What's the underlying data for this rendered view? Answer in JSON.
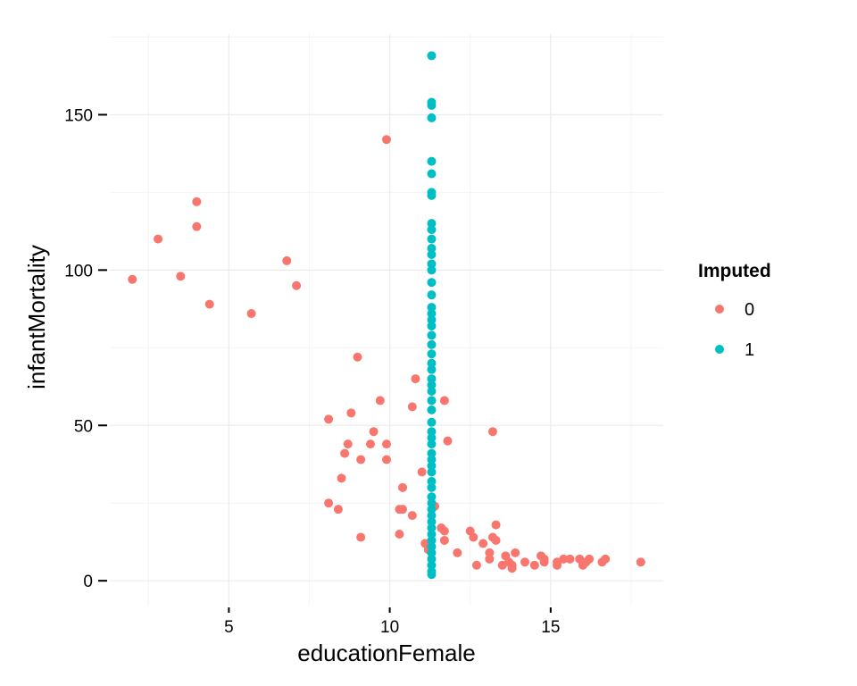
{
  "chart_data": {
    "type": "scatter",
    "xlabel": "educationFemale",
    "ylabel": "infantMortality",
    "xlim": [
      1.3,
      18.5
    ],
    "ylim": [
      -8,
      176
    ],
    "x_ticks": [
      5,
      10,
      15
    ],
    "x_tick_labels": [
      "5",
      "10",
      "15"
    ],
    "y_ticks": [
      0,
      50,
      100,
      150
    ],
    "y_tick_labels": [
      "0",
      "50",
      "100",
      "150"
    ],
    "grid": true,
    "legend": {
      "title": "Imputed",
      "position": "right"
    },
    "series": [
      {
        "name": "0",
        "color": "#F8766D",
        "points": [
          [
            2.0,
            97
          ],
          [
            2.8,
            110
          ],
          [
            3.5,
            98
          ],
          [
            4.0,
            122
          ],
          [
            4.0,
            114
          ],
          [
            4.4,
            89
          ],
          [
            5.7,
            86
          ],
          [
            6.8,
            103
          ],
          [
            7.1,
            95
          ],
          [
            9.9,
            142
          ],
          [
            8.1,
            52
          ],
          [
            8.1,
            25
          ],
          [
            8.4,
            23
          ],
          [
            8.5,
            33
          ],
          [
            8.6,
            41
          ],
          [
            8.7,
            44
          ],
          [
            8.8,
            54
          ],
          [
            9.0,
            72
          ],
          [
            9.1,
            39
          ],
          [
            9.1,
            14
          ],
          [
            9.4,
            44
          ],
          [
            9.5,
            48
          ],
          [
            9.7,
            58
          ],
          [
            9.9,
            44
          ],
          [
            9.9,
            39
          ],
          [
            10.3,
            23
          ],
          [
            10.3,
            15
          ],
          [
            10.4,
            30
          ],
          [
            10.4,
            23
          ],
          [
            10.7,
            56
          ],
          [
            10.7,
            21
          ],
          [
            10.8,
            65
          ],
          [
            11.0,
            35
          ],
          [
            11.1,
            12
          ],
          [
            11.2,
            10
          ],
          [
            11.4,
            24
          ],
          [
            11.6,
            17
          ],
          [
            11.7,
            58
          ],
          [
            11.7,
            13
          ],
          [
            11.7,
            16
          ],
          [
            11.8,
            45
          ],
          [
            12.1,
            9
          ],
          [
            12.5,
            16
          ],
          [
            12.6,
            14
          ],
          [
            12.7,
            5
          ],
          [
            12.9,
            12
          ],
          [
            13.1,
            7
          ],
          [
            13.1,
            9
          ],
          [
            13.2,
            48
          ],
          [
            13.2,
            14
          ],
          [
            13.3,
            18
          ],
          [
            13.3,
            13
          ],
          [
            13.5,
            5
          ],
          [
            13.6,
            8
          ],
          [
            13.7,
            6
          ],
          [
            13.8,
            4
          ],
          [
            13.8,
            5
          ],
          [
            13.9,
            9
          ],
          [
            14.2,
            6
          ],
          [
            14.5,
            5
          ],
          [
            14.7,
            8
          ],
          [
            14.8,
            7
          ],
          [
            14.8,
            6
          ],
          [
            15.2,
            6
          ],
          [
            15.2,
            5
          ],
          [
            15.4,
            7
          ],
          [
            15.6,
            7
          ],
          [
            15.9,
            7
          ],
          [
            16.0,
            5
          ],
          [
            16.1,
            6
          ],
          [
            16.2,
            7
          ],
          [
            16.6,
            6
          ],
          [
            16.7,
            7
          ],
          [
            17.8,
            6
          ]
        ]
      },
      {
        "name": "1",
        "color": "#00BFC4",
        "points": [
          [
            11.3,
            169
          ],
          [
            11.3,
            154
          ],
          [
            11.3,
            153
          ],
          [
            11.3,
            149
          ],
          [
            11.3,
            135
          ],
          [
            11.3,
            131
          ],
          [
            11.3,
            125
          ],
          [
            11.3,
            124
          ],
          [
            11.3,
            115
          ],
          [
            11.3,
            113
          ],
          [
            11.3,
            110
          ],
          [
            11.3,
            107
          ],
          [
            11.3,
            105
          ],
          [
            11.3,
            102
          ],
          [
            11.3,
            100
          ],
          [
            11.3,
            96
          ],
          [
            11.3,
            92
          ],
          [
            11.3,
            88
          ],
          [
            11.3,
            86
          ],
          [
            11.3,
            84
          ],
          [
            11.3,
            82
          ],
          [
            11.3,
            79
          ],
          [
            11.3,
            76
          ],
          [
            11.3,
            73
          ],
          [
            11.3,
            70
          ],
          [
            11.3,
            68
          ],
          [
            11.3,
            65
          ],
          [
            11.3,
            63
          ],
          [
            11.3,
            61
          ],
          [
            11.3,
            58
          ],
          [
            11.3,
            55
          ],
          [
            11.3,
            51
          ],
          [
            11.3,
            48
          ],
          [
            11.3,
            46
          ],
          [
            11.3,
            44
          ],
          [
            11.3,
            41
          ],
          [
            11.3,
            39
          ],
          [
            11.3,
            37
          ],
          [
            11.3,
            35
          ],
          [
            11.3,
            32
          ],
          [
            11.3,
            30
          ],
          [
            11.3,
            27
          ],
          [
            11.3,
            25
          ],
          [
            11.3,
            23
          ],
          [
            11.3,
            21
          ],
          [
            11.3,
            19
          ],
          [
            11.3,
            17
          ],
          [
            11.3,
            15
          ],
          [
            11.3,
            13
          ],
          [
            11.3,
            11
          ],
          [
            11.3,
            9
          ],
          [
            11.3,
            7
          ],
          [
            11.3,
            5
          ],
          [
            11.3,
            3
          ],
          [
            11.3,
            2
          ]
        ]
      }
    ]
  }
}
